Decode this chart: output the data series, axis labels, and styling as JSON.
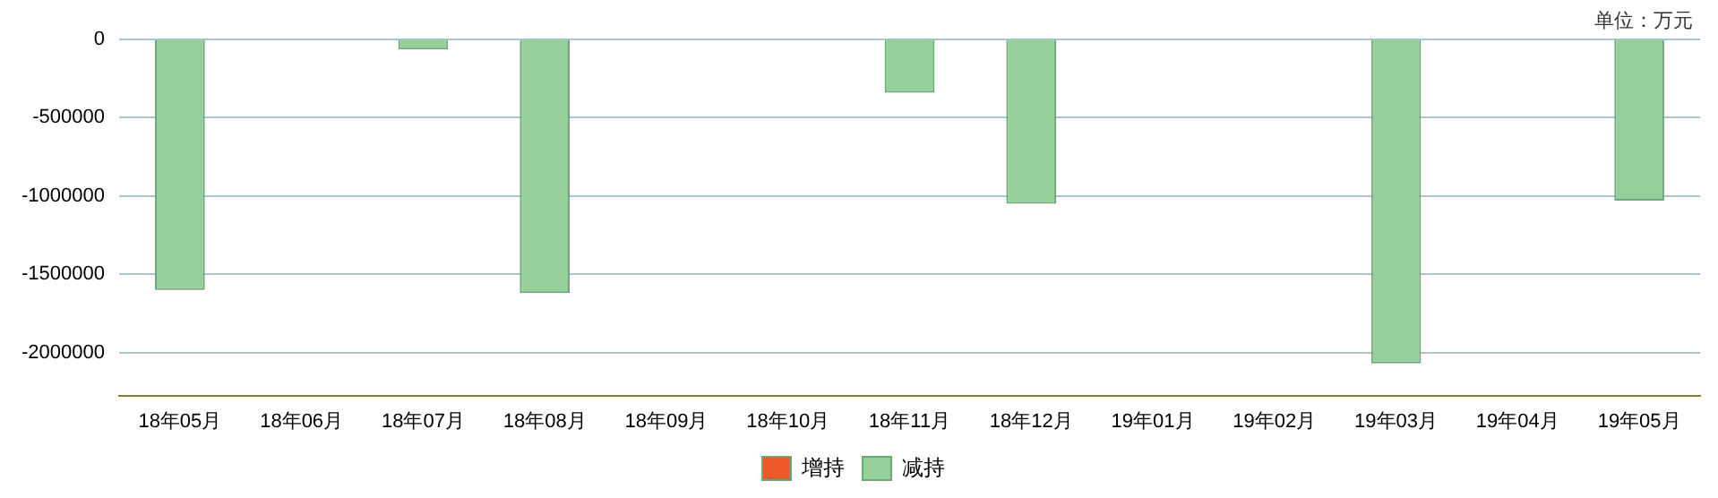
{
  "chart_data": {
    "type": "bar",
    "categories": [
      "18年05月",
      "18年06月",
      "18年07月",
      "18年08月",
      "18年09月",
      "18年10月",
      "18年11月",
      "18年12月",
      "19年01月",
      "19年02月",
      "19年03月",
      "19年04月",
      "19年05月"
    ],
    "series": [
      {
        "name": "增持",
        "color": "#f05a2a",
        "values": [
          null,
          null,
          null,
          null,
          null,
          null,
          null,
          null,
          null,
          null,
          null,
          null,
          null
        ]
      },
      {
        "name": "减持",
        "color": "#96cf9a",
        "values": [
          -1600000,
          null,
          -65000,
          -1620000,
          null,
          null,
          -340000,
          -1050000,
          null,
          null,
          -2070000,
          null,
          -1030000
        ]
      }
    ],
    "ylim": [
      -2275000,
      0
    ],
    "yticks": [
      0,
      -500000,
      -1000000,
      -1500000,
      -2000000
    ],
    "grid": "y",
    "legend": "bottom",
    "annotations": [
      "单位：万元"
    ]
  }
}
